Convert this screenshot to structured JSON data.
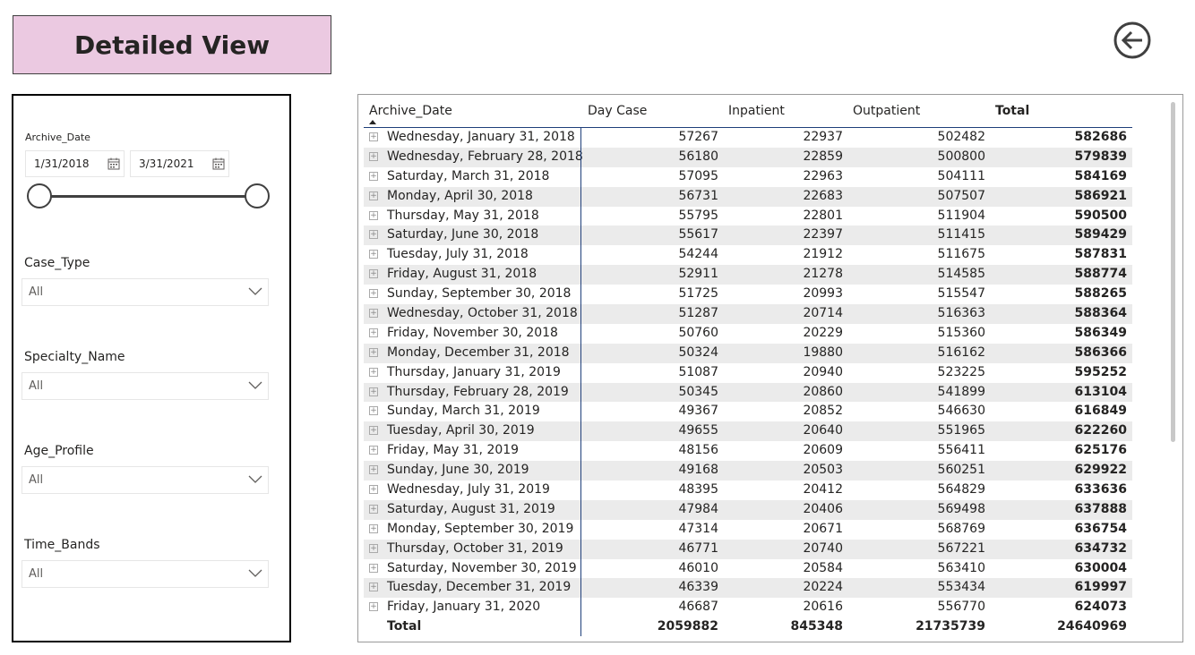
{
  "page_title": "Detailed View",
  "filters": {
    "archive_date": {
      "label": "Archive_Date",
      "start": "1/31/2018",
      "end": "3/31/2021"
    },
    "case_type": {
      "label": "Case_Type",
      "value": "All"
    },
    "specialty_name": {
      "label": "Specialty_Name",
      "value": "All"
    },
    "age_profile": {
      "label": "Age_Profile",
      "value": "All"
    },
    "time_bands": {
      "label": "Time_Bands",
      "value": "All"
    }
  },
  "table": {
    "headers": [
      "Archive_Date",
      "Day Case",
      "Inpatient",
      "Outpatient",
      "Total"
    ],
    "rows": [
      [
        "Wednesday, January 31, 2018",
        "57267",
        "22937",
        "502482",
        "582686"
      ],
      [
        "Wednesday, February 28, 2018",
        "56180",
        "22859",
        "500800",
        "579839"
      ],
      [
        "Saturday, March 31, 2018",
        "57095",
        "22963",
        "504111",
        "584169"
      ],
      [
        "Monday, April 30, 2018",
        "56731",
        "22683",
        "507507",
        "586921"
      ],
      [
        "Thursday, May 31, 2018",
        "55795",
        "22801",
        "511904",
        "590500"
      ],
      [
        "Saturday, June 30, 2018",
        "55617",
        "22397",
        "511415",
        "589429"
      ],
      [
        "Tuesday, July 31, 2018",
        "54244",
        "21912",
        "511675",
        "587831"
      ],
      [
        "Friday, August 31, 2018",
        "52911",
        "21278",
        "514585",
        "588774"
      ],
      [
        "Sunday, September 30, 2018",
        "51725",
        "20993",
        "515547",
        "588265"
      ],
      [
        "Wednesday, October 31, 2018",
        "51287",
        "20714",
        "516363",
        "588364"
      ],
      [
        "Friday, November 30, 2018",
        "50760",
        "20229",
        "515360",
        "586349"
      ],
      [
        "Monday, December 31, 2018",
        "50324",
        "19880",
        "516162",
        "586366"
      ],
      [
        "Thursday, January 31, 2019",
        "51087",
        "20940",
        "523225",
        "595252"
      ],
      [
        "Thursday, February 28, 2019",
        "50345",
        "20860",
        "541899",
        "613104"
      ],
      [
        "Sunday, March 31, 2019",
        "49367",
        "20852",
        "546630",
        "616849"
      ],
      [
        "Tuesday, April 30, 2019",
        "49655",
        "20640",
        "551965",
        "622260"
      ],
      [
        "Friday, May 31, 2019",
        "48156",
        "20609",
        "556411",
        "625176"
      ],
      [
        "Sunday, June 30, 2019",
        "49168",
        "20503",
        "560251",
        "629922"
      ],
      [
        "Wednesday, July 31, 2019",
        "48395",
        "20412",
        "564829",
        "633636"
      ],
      [
        "Saturday, August 31, 2019",
        "47984",
        "20406",
        "569498",
        "637888"
      ],
      [
        "Monday, September 30, 2019",
        "47314",
        "20671",
        "568769",
        "636754"
      ],
      [
        "Thursday, October 31, 2019",
        "46771",
        "20740",
        "567221",
        "634732"
      ],
      [
        "Saturday, November 30, 2019",
        "46010",
        "20584",
        "563410",
        "630004"
      ],
      [
        "Tuesday, December 31, 2019",
        "46339",
        "20224",
        "553434",
        "619997"
      ],
      [
        "Friday, January 31, 2020",
        "46687",
        "20616",
        "556770",
        "624073"
      ]
    ],
    "total": {
      "label": "Total",
      "day_case": "2059882",
      "inpatient": "845348",
      "outpatient": "21735739",
      "total": "24640969"
    }
  },
  "icons": {
    "back": "back-arrow-icon",
    "calendar": "calendar-icon",
    "expand": "expand-plus-icon",
    "chevron": "chevron-down-icon"
  },
  "colors": {
    "title_bg": "#ebc9e1",
    "header_line": "#1f3f7a",
    "alt_row": "#ebebeb"
  }
}
